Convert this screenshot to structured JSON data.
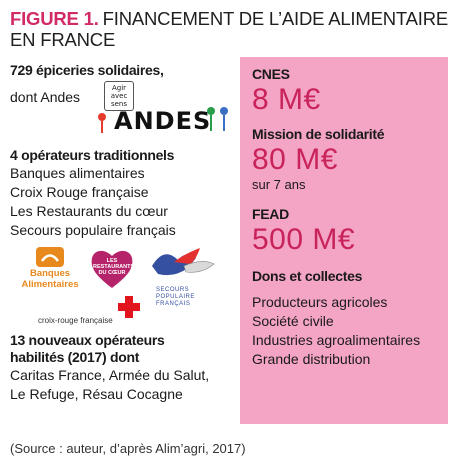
{
  "figure": {
    "number": "FIGURE 1.",
    "title_line1": "FINANCEMENT DE L’AIDE ALIMENTAIRE",
    "title_line2": "EN FRANCE"
  },
  "left": {
    "epiceries_heading": "729 épiceries solidaires,",
    "epiceries_sub": "dont Andes",
    "andes_logo_tag": [
      "Agir",
      "avec",
      "sens"
    ],
    "andes_logo_word": "ANDES",
    "traditionnels_heading": "4 opérateurs traditionnels",
    "traditionnels_items": [
      "Banques alimentaires",
      "Croix Rouge française",
      "Les Restaurants du cœur",
      "Secours populaire français"
    ],
    "logos": {
      "banques_line1": "Banques",
      "banques_line2": "Alimentaires",
      "restos_text": "LES RESTAURANTS DU CŒUR",
      "secours_text": "SECOURS POPULAIRE FRANÇAIS",
      "croix_rouge_text": "croix-rouge française"
    },
    "nouveaux_heading_line1": "13 nouveaux opérateurs",
    "nouveaux_heading_line2": "habilités (2017) dont",
    "nouveaux_items_line1": "Caritas France, Armée du Salut,",
    "nouveaux_items_line2": "Le Refuge, Résau Cocagne"
  },
  "right": {
    "cnes_label": "CNES",
    "cnes_amount": "8 M€",
    "mission_label": "Mission de solidarité",
    "mission_amount": "80 M€",
    "mission_sub": "sur 7 ans",
    "fead_label": "FEAD",
    "fead_amount": "500 M€",
    "dons_label": "Dons et collectes",
    "dons_items": [
      "Producteurs agricoles",
      "Société civile",
      "Industries agroalimentaires",
      "Grande distribution"
    ]
  },
  "source": "(Source : auteur, d’après Alim’agri, 2017)",
  "colors": {
    "accent": "#d22a66",
    "panel": "#f4a4c4",
    "amount": "#c8235a",
    "banques_orange": "#e8891e",
    "croix_red": "#e2151e"
  }
}
